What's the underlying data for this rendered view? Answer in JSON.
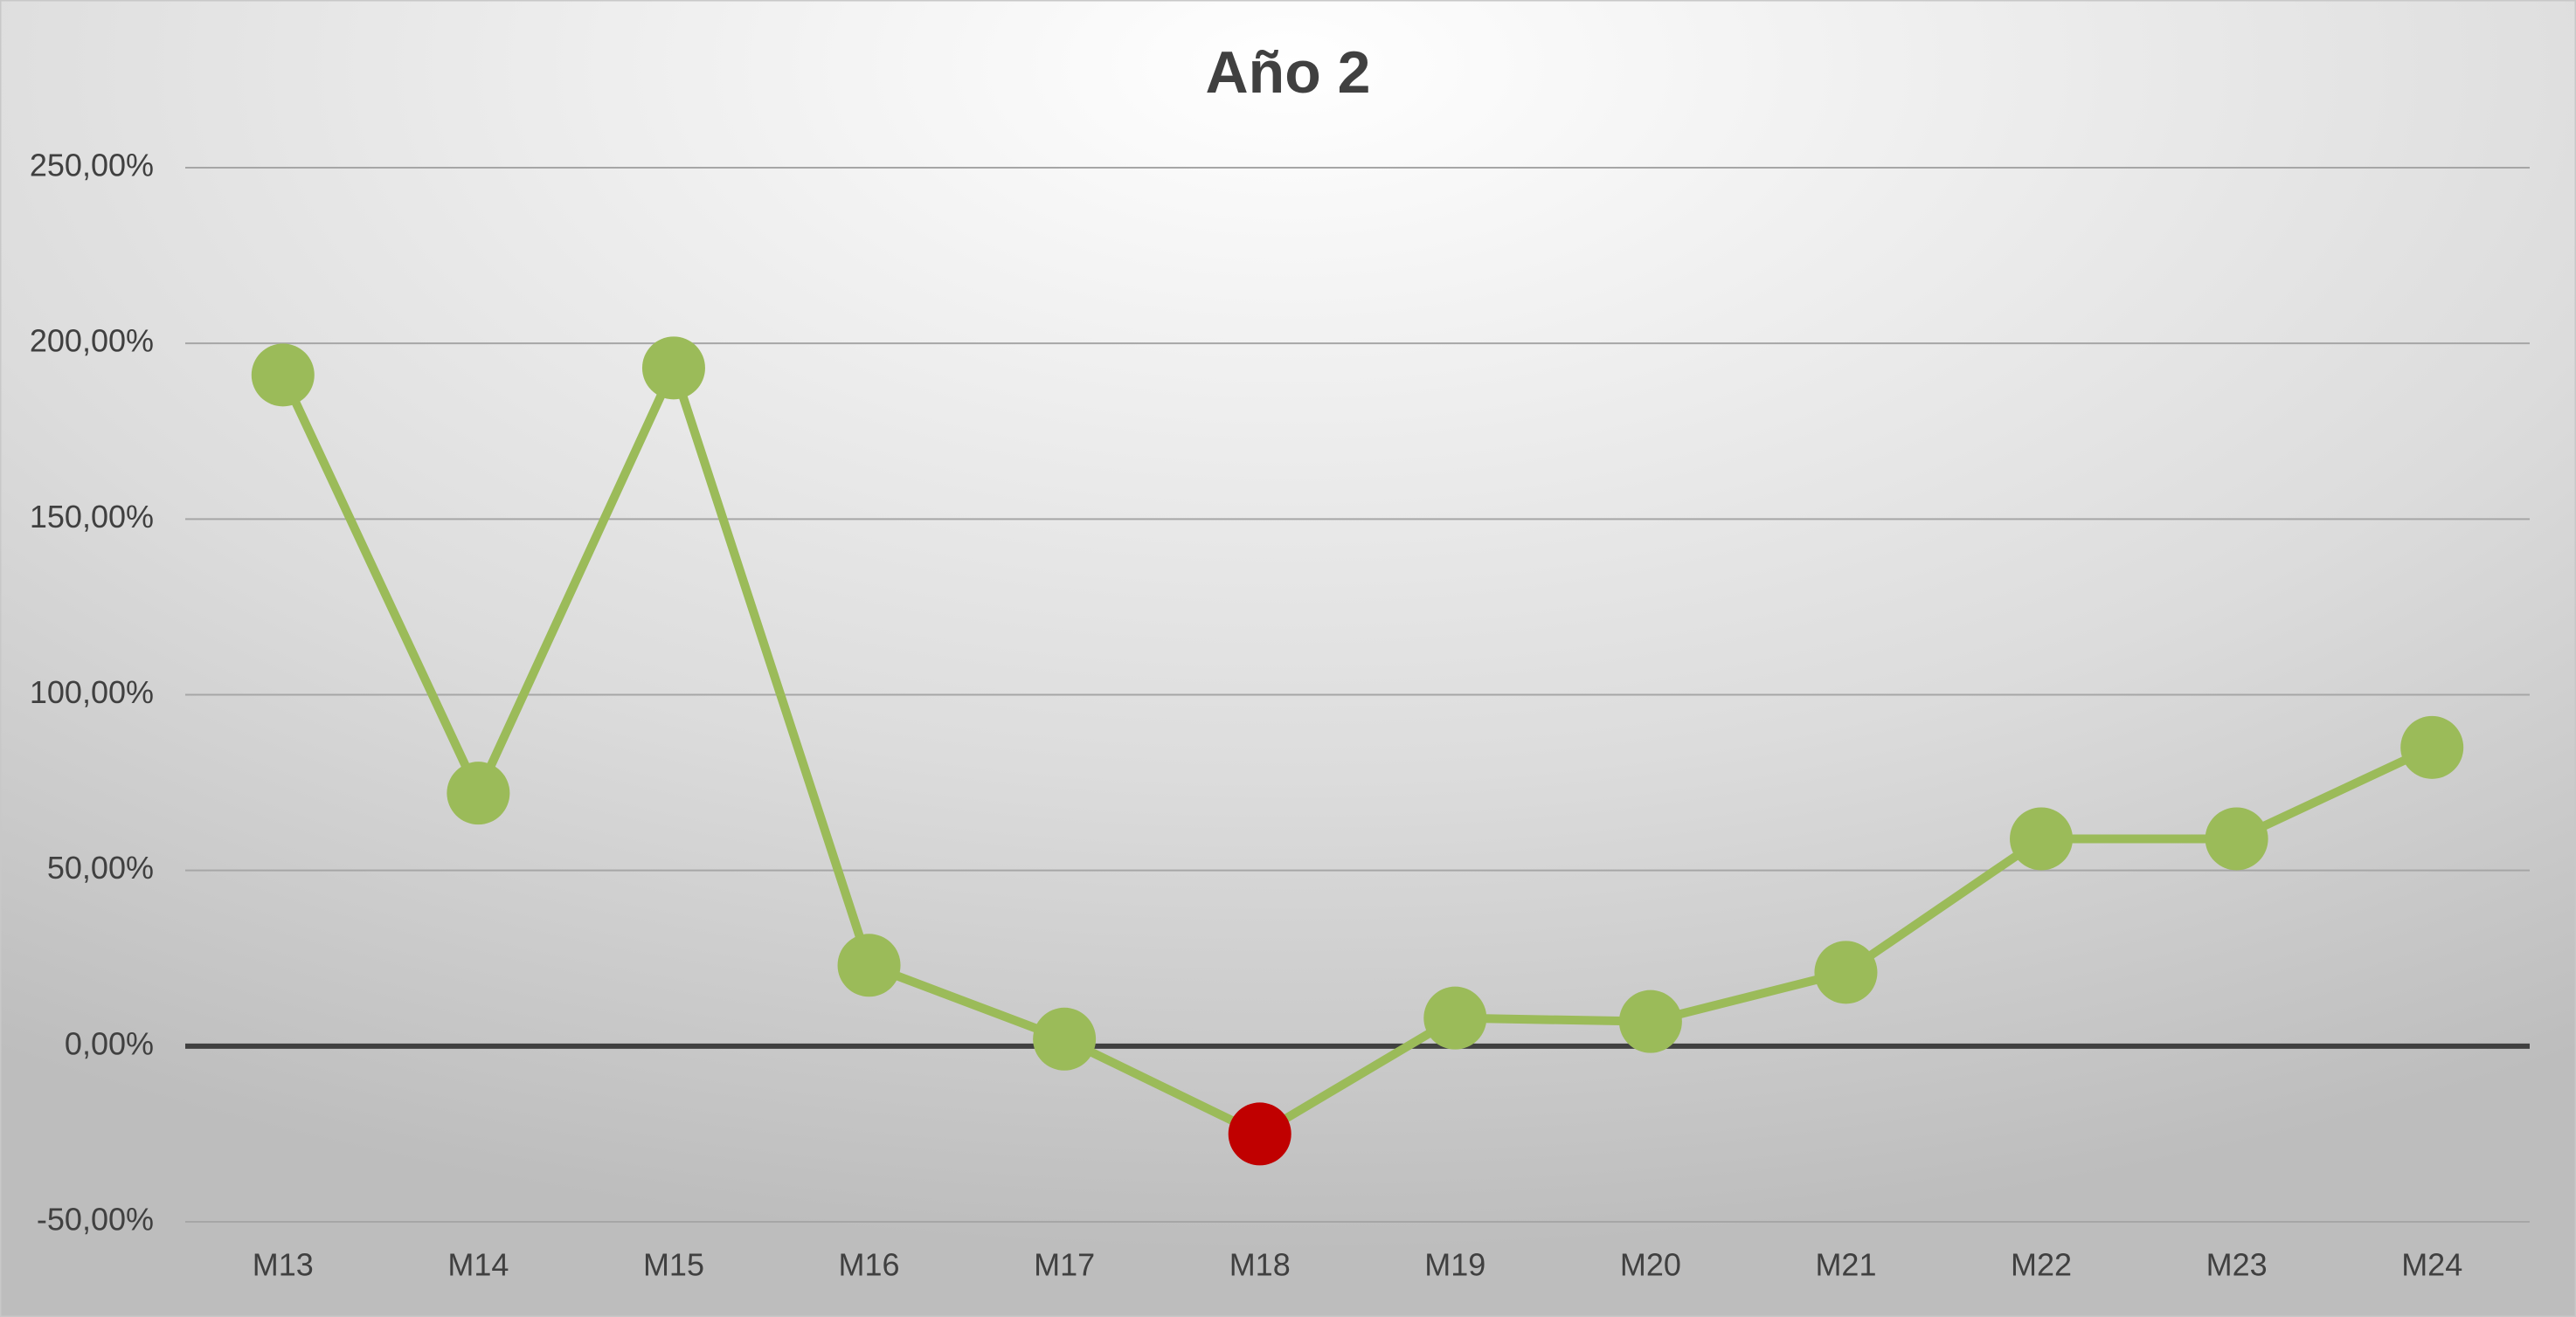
{
  "chart_data": {
    "type": "line",
    "title": "Año 2",
    "categories": [
      "M13",
      "M14",
      "M15",
      "M16",
      "M17",
      "M18",
      "M19",
      "M20",
      "M21",
      "M22",
      "M23",
      "M24"
    ],
    "series": [
      {
        "color": "#9bbb59",
        "values": [
          191,
          72,
          193,
          23,
          2,
          -25,
          8,
          7,
          21,
          59,
          59,
          85
        ],
        "marker_colors": [
          "#9bbb59",
          "#9bbb59",
          "#9bbb59",
          "#9bbb59",
          "#9bbb59",
          "#c00000",
          "#9bbb59",
          "#9bbb59",
          "#9bbb59",
          "#9bbb59",
          "#9bbb59",
          "#9bbb59"
        ]
      }
    ],
    "ylim": [
      -50,
      250
    ],
    "yticks": [
      {
        "value": -50,
        "label": "-50,00%"
      },
      {
        "value": 0,
        "label": "0,00%"
      },
      {
        "value": 50,
        "label": "50,00%"
      },
      {
        "value": 100,
        "label": "100,00%"
      },
      {
        "value": 150,
        "label": "150,00%"
      },
      {
        "value": 200,
        "label": "200,00%"
      },
      {
        "value": 250,
        "label": "250,00%"
      }
    ],
    "grid": true
  }
}
